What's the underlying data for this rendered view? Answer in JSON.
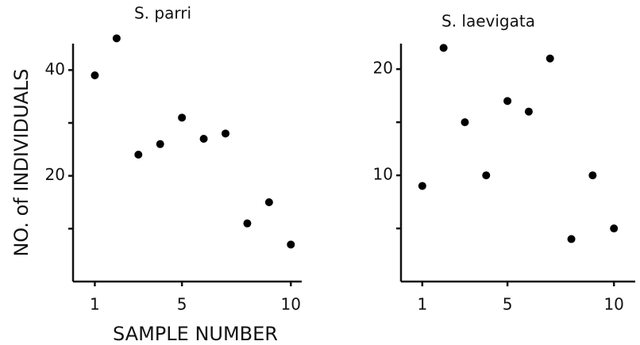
{
  "ylabel": "NO. of INDIVIDUALS",
  "xlabel": "SAMPLE NUMBER",
  "chart_data": [
    {
      "type": "scatter",
      "title": "S. parri",
      "color": "#000000",
      "x": [
        1,
        2,
        3,
        4,
        5,
        6,
        7,
        8,
        9,
        10
      ],
      "values": [
        39,
        46,
        24,
        26,
        31,
        27,
        28,
        11,
        15,
        7
      ],
      "xlim": [
        0,
        10.5
      ],
      "ylim": [
        0,
        45
      ],
      "xticks": [
        1,
        5,
        10
      ],
      "yticks": [
        20,
        40
      ],
      "yminor": [
        10,
        30
      ]
    },
    {
      "type": "scatter",
      "title": "S. laevigata",
      "color": "#000000",
      "x": [
        1,
        2,
        3,
        4,
        5,
        6,
        7,
        8,
        9,
        10
      ],
      "values": [
        9,
        22,
        15,
        10,
        17,
        16,
        21,
        4,
        10,
        5
      ],
      "xlim": [
        0,
        11
      ],
      "ylim": [
        0,
        22.4
      ],
      "xticks": [
        1,
        5,
        10
      ],
      "yticks": [
        10,
        20
      ],
      "yminor": [
        5,
        15
      ]
    }
  ]
}
